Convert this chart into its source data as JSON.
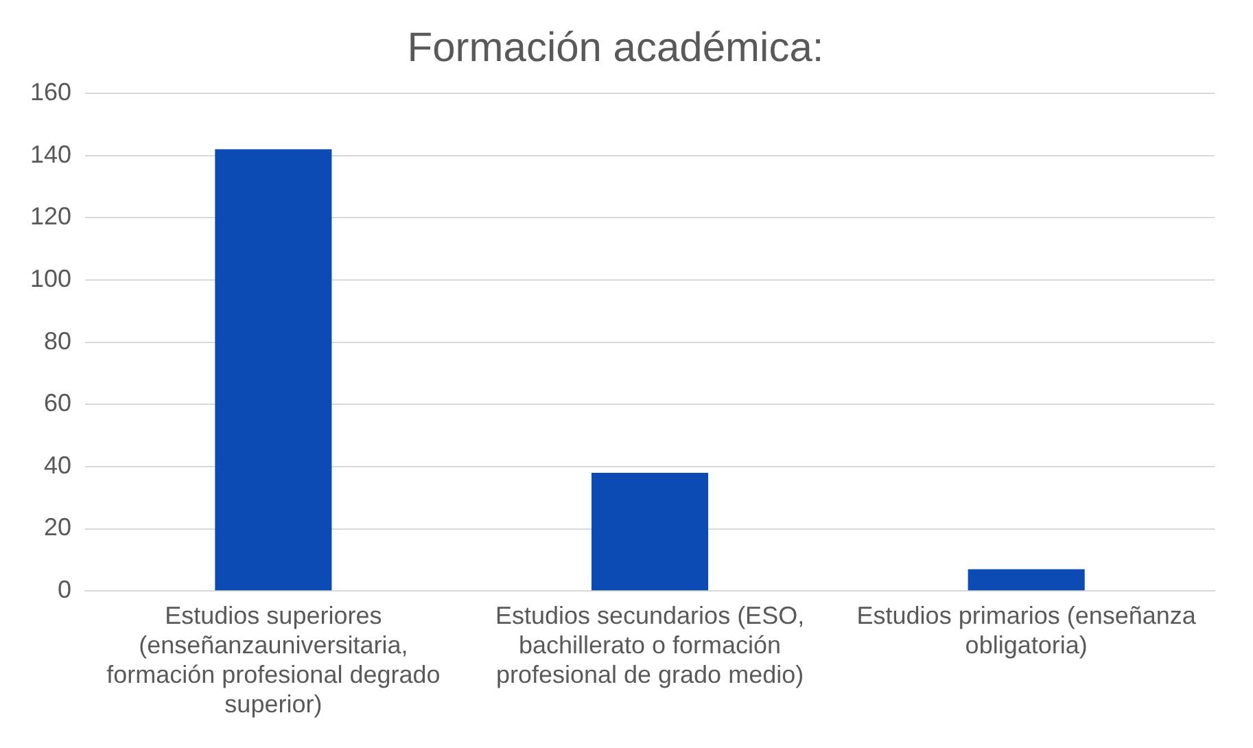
{
  "chart_data": {
    "type": "bar",
    "title": "Formación académica:",
    "categories": [
      "Estudios superiores (enseñanzauniversitaria, formación profesional degrado superior)",
      "Estudios secundarios (ESO, bachillerato o formación profesional de grado medio)",
      "Estudios primarios (enseñanza obligatoria)"
    ],
    "values": [
      142,
      38,
      7
    ],
    "color": "#0b4bb3",
    "ylim": [
      0,
      160
    ],
    "yticks": [
      0,
      20,
      40,
      60,
      80,
      100,
      120,
      140,
      160
    ],
    "grid": "y",
    "legend": false
  }
}
